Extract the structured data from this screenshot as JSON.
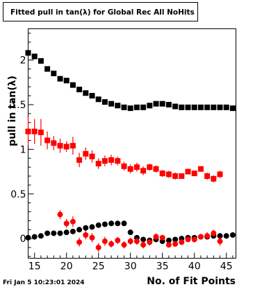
{
  "chart_data": {
    "type": "scatter",
    "title": "Fitted pull in tan(λ) for Global Rec All NoHits",
    "xlabel": "No. of Fit Points",
    "ylabel": "pull in tan(λ)",
    "xlim": [
      14,
      46.5
    ],
    "ylim": [
      -0.22,
      2.35
    ],
    "x_ticks": [
      15,
      20,
      25,
      30,
      35,
      40,
      45
    ],
    "x_tick_labels": [
      "15",
      "20",
      "25",
      "30",
      "35",
      "40",
      "45"
    ],
    "y_ticks": [
      0,
      0.5,
      1,
      1.5,
      2
    ],
    "y_tick_labels": [
      "0",
      "0.5",
      "1",
      "1.5",
      "2"
    ],
    "grid": false,
    "footer": "Fri Jan  5 10:23:01 2024",
    "series": [
      {
        "marker": "square",
        "color": "#000000",
        "x": [
          14,
          15,
          16,
          17,
          18,
          19,
          20,
          21,
          22,
          23,
          24,
          25,
          26,
          27,
          28,
          29,
          30,
          31,
          32,
          33,
          34,
          35,
          36,
          37,
          38,
          39,
          40,
          41,
          42,
          43,
          44,
          45,
          46
        ],
        "y": [
          2.08,
          2.04,
          1.99,
          1.9,
          1.85,
          1.79,
          1.77,
          1.72,
          1.67,
          1.63,
          1.6,
          1.56,
          1.53,
          1.51,
          1.49,
          1.47,
          1.46,
          1.47,
          1.47,
          1.49,
          1.51,
          1.51,
          1.5,
          1.48,
          1.47,
          1.47,
          1.47,
          1.47,
          1.47,
          1.47,
          1.47,
          1.47,
          1.46
        ]
      },
      {
        "marker": "square",
        "color": "#ff0000",
        "x": [
          14,
          15,
          16,
          17,
          18,
          19,
          20,
          21,
          22,
          23,
          24,
          25,
          26,
          27,
          28,
          29,
          30,
          31,
          32,
          33,
          34,
          35,
          36,
          37,
          38,
          39,
          40,
          41,
          42,
          43,
          44
        ],
        "y": [
          1.2,
          1.2,
          1.19,
          1.1,
          1.07,
          1.04,
          1.03,
          1.04,
          0.88,
          0.95,
          0.92,
          0.84,
          0.87,
          0.88,
          0.87,
          0.81,
          0.78,
          0.8,
          0.76,
          0.8,
          0.78,
          0.73,
          0.72,
          0.7,
          0.7,
          0.75,
          0.73,
          0.78,
          0.7,
          0.67,
          0.72
        ],
        "err": [
          0.16,
          0.14,
          0.15,
          0.1,
          0.08,
          0.08,
          0.06,
          0.1,
          0.08,
          0.07,
          0.07,
          0.06,
          0.06,
          0.06,
          0.05,
          0.05,
          0.05,
          0.05,
          0.05,
          0.04,
          0.04,
          0.04,
          0.04,
          0.04,
          0.03,
          0.03,
          0.03,
          0.03,
          0.04,
          0.04,
          0.04
        ]
      },
      {
        "marker": "circle",
        "color": "#000000",
        "x": [
          14,
          15,
          16,
          17,
          18,
          19,
          20,
          21,
          22,
          23,
          24,
          25,
          26,
          27,
          28,
          29,
          30,
          31,
          32,
          33,
          34,
          35,
          36,
          37,
          38,
          39,
          40,
          41,
          42,
          43,
          44,
          45,
          46
        ],
        "y": [
          0.01,
          0.02,
          0.03,
          0.06,
          0.06,
          0.06,
          0.07,
          0.08,
          0.1,
          0.12,
          0.13,
          0.15,
          0.16,
          0.17,
          0.17,
          0.17,
          0.07,
          0.01,
          -0.01,
          -0.02,
          -0.01,
          -0.03,
          -0.02,
          -0.01,
          0.0,
          0.01,
          0.01,
          0.02,
          0.02,
          0.03,
          0.03,
          0.03,
          0.04
        ]
      },
      {
        "marker": "circle",
        "color": "#ff0000",
        "x": [
          19,
          20,
          21,
          22,
          23,
          24,
          25,
          26,
          27,
          28,
          29,
          30,
          31,
          32,
          33,
          34,
          35,
          36,
          37,
          38,
          39,
          40,
          41,
          42,
          43,
          44
        ],
        "y": [
          0.27,
          0.17,
          0.19,
          -0.04,
          0.04,
          0.01,
          -0.1,
          -0.03,
          -0.06,
          -0.02,
          -0.07,
          -0.03,
          -0.03,
          -0.07,
          -0.04,
          0.02,
          0.01,
          -0.07,
          -0.06,
          -0.04,
          -0.01,
          -0.01,
          0.02,
          0.03,
          0.06,
          -0.03
        ],
        "err": [
          0.05,
          0.05,
          0.06,
          0.05,
          0.05,
          0.05,
          0.05,
          0.05,
          0.04,
          0.04,
          0.04,
          0.04,
          0.04,
          0.04,
          0.04,
          0.04,
          0.03,
          0.03,
          0.03,
          0.03,
          0.03,
          0.03,
          0.03,
          0.04,
          0.04,
          0.05
        ]
      }
    ]
  }
}
